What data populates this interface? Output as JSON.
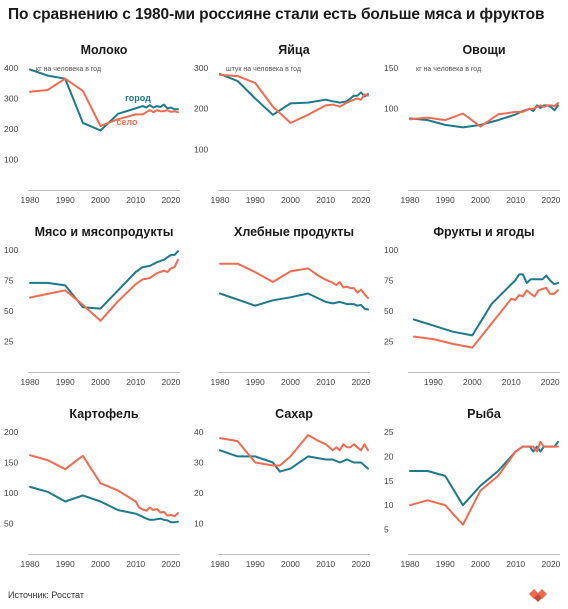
{
  "title": "По сравнению с 1980-ми россияне стали есть больше мяса и фруктов",
  "source": "Источник: Росстат",
  "colors": {
    "city": "#1c7a8c",
    "village": "#f26b50",
    "text": "#1a1a1a",
    "tick": "#444444"
  },
  "chart_data": [
    {
      "type": "line",
      "title": "Молоко",
      "ylim": [
        0,
        400
      ],
      "yticks": [
        0,
        100,
        200,
        300,
        400
      ],
      "ytick_labels": [
        "",
        "100",
        "200",
        "300",
        "400"
      ],
      "xlim": [
        1980,
        2022
      ],
      "xticks": [
        1980,
        1990,
        2000,
        2010,
        2020
      ],
      "unit_note": "кг на человека в год",
      "series": [
        {
          "name": "город",
          "color": "#1c7a8c",
          "x": [
            1980,
            1985,
            1990,
            1995,
            2000,
            2005,
            2010,
            2012,
            2013,
            2014,
            2015,
            2016,
            2017,
            2018,
            2019,
            2020,
            2021,
            2022
          ],
          "y": [
            395,
            375,
            365,
            220,
            195,
            250,
            268,
            275,
            270,
            278,
            270,
            275,
            272,
            280,
            268,
            270,
            265,
            265
          ]
        },
        {
          "name": "село",
          "color": "#f26b50",
          "x": [
            1980,
            1985,
            1990,
            1995,
            2000,
            2005,
            2010,
            2012,
            2013,
            2014,
            2015,
            2016,
            2017,
            2018,
            2019,
            2020,
            2021,
            2022
          ],
          "y": [
            322,
            328,
            365,
            325,
            210,
            232,
            248,
            248,
            255,
            262,
            255,
            262,
            258,
            258,
            262,
            256,
            258,
            255
          ]
        }
      ]
    },
    {
      "type": "line",
      "title": "Яйца",
      "ylim": [
        0,
        300
      ],
      "yticks": [
        0,
        100,
        200,
        300
      ],
      "ytick_labels": [
        "",
        "100",
        "200",
        "300"
      ],
      "xlim": [
        1980,
        2022
      ],
      "xticks": [
        1980,
        1990,
        2000,
        2010,
        2020
      ],
      "unit_note": "штук на человека в год",
      "series": [
        {
          "name": "",
          "color": "#1c7a8c",
          "x": [
            1980,
            1985,
            1990,
            1995,
            2000,
            2005,
            2010,
            2012,
            2014,
            2016,
            2018,
            2019,
            2020,
            2021,
            2022
          ],
          "y": [
            285,
            268,
            225,
            185,
            213,
            215,
            222,
            218,
            215,
            218,
            232,
            232,
            240,
            230,
            236
          ]
        },
        {
          "name": "",
          "color": "#f26b50",
          "x": [
            1980,
            1985,
            1990,
            1995,
            2000,
            2005,
            2010,
            2012,
            2014,
            2016,
            2018,
            2019,
            2020,
            2021,
            2022
          ],
          "y": [
            283,
            280,
            263,
            205,
            165,
            185,
            208,
            210,
            205,
            215,
            222,
            225,
            222,
            235,
            232
          ]
        }
      ]
    },
    {
      "type": "line",
      "title": "Овощи",
      "ylim": [
        0,
        150
      ],
      "yticks": [
        0,
        50,
        100,
        150
      ],
      "ytick_labels": [
        "",
        "",
        "100",
        "150"
      ],
      "xlim": [
        1980,
        2022
      ],
      "xticks": [
        1980,
        1990,
        2000,
        2010,
        2020
      ],
      "unit_note": "кг на человека в год",
      "series": [
        {
          "name": "",
          "color": "#1c7a8c",
          "x": [
            1980,
            1985,
            1990,
            1995,
            2000,
            2005,
            2010,
            2012,
            2014,
            2015,
            2016,
            2017,
            2018,
            2019,
            2020,
            2021,
            2022
          ],
          "y": [
            88,
            86,
            80,
            77,
            80,
            86,
            93,
            97,
            100,
            97,
            104,
            101,
            104,
            104,
            102,
            98,
            104
          ]
        },
        {
          "name": "",
          "color": "#f26b50",
          "x": [
            1980,
            1985,
            1990,
            1995,
            2000,
            2005,
            2010,
            2012,
            2014,
            2015,
            2016,
            2017,
            2018,
            2019,
            2020,
            2021,
            2022
          ],
          "y": [
            87,
            89,
            86,
            94,
            78,
            93,
            96,
            96,
            100,
            100,
            102,
            104,
            102,
            104,
            104,
            103,
            107
          ]
        }
      ]
    },
    {
      "type": "line",
      "title": "Мясо и мясопродукты",
      "ylim": [
        0,
        100
      ],
      "yticks": [
        0,
        25,
        50,
        75,
        100
      ],
      "ytick_labels": [
        "",
        "25",
        "50",
        "75",
        "100"
      ],
      "xlim": [
        1980,
        2022
      ],
      "xticks": [
        1980,
        1990,
        2000,
        2010,
        2020
      ],
      "unit_note": "",
      "series": [
        {
          "name": "",
          "color": "#1c7a8c",
          "x": [
            1980,
            1985,
            1990,
            1995,
            2000,
            2005,
            2010,
            2012,
            2014,
            2016,
            2018,
            2019,
            2020,
            2021,
            2022
          ],
          "y": [
            73,
            73,
            71,
            53,
            52,
            67,
            82,
            86,
            87,
            90,
            92,
            94,
            96,
            96,
            99
          ]
        },
        {
          "name": "",
          "color": "#f26b50",
          "x": [
            1980,
            1985,
            1990,
            1995,
            2000,
            2005,
            2010,
            2012,
            2014,
            2016,
            2018,
            2019,
            2020,
            2021,
            2022
          ],
          "y": [
            61,
            64,
            67,
            55,
            42,
            58,
            72,
            76,
            77,
            81,
            83,
            82,
            85,
            86,
            92
          ]
        }
      ]
    },
    {
      "type": "line",
      "title": "Хлебные продукты",
      "ylim": [
        0,
        160
      ],
      "yticks": [
        0,
        40,
        80,
        120,
        160
      ],
      "ytick_labels": [
        "",
        "",
        "",
        "",
        ""
      ],
      "xlim": [
        1980,
        2022
      ],
      "xticks": [
        1980,
        1990,
        2000,
        2010,
        2020
      ],
      "unit_note": "",
      "series": [
        {
          "name": "",
          "color": "#1c7a8c",
          "x": [
            1980,
            1985,
            1990,
            1995,
            2000,
            2005,
            2010,
            2012,
            2014,
            2016,
            2018,
            2019,
            2020,
            2021,
            2022
          ],
          "y": [
            103,
            95,
            87,
            94,
            98,
            103,
            92,
            90,
            92,
            89,
            89,
            87,
            88,
            83,
            82
          ]
        },
        {
          "name": "",
          "color": "#f26b50",
          "x": [
            1980,
            1985,
            1990,
            1995,
            2000,
            2005,
            2008,
            2010,
            2012,
            2013,
            2014,
            2015,
            2016,
            2017,
            2018,
            2019,
            2020,
            2021,
            2022
          ],
          "y": [
            142,
            142,
            131,
            118,
            132,
            136,
            126,
            121,
            117,
            114,
            118,
            111,
            112,
            110,
            110,
            104,
            108,
            102,
            97
          ]
        }
      ]
    },
    {
      "type": "line",
      "title": "Фрукты и ягоды",
      "ylim": [
        0,
        100
      ],
      "yticks": [
        0,
        25,
        50,
        75,
        100
      ],
      "ytick_labels": [
        "",
        "25",
        "50",
        "75",
        "100"
      ],
      "xlim": [
        1984,
        2022
      ],
      "xticks": [
        1990,
        2000,
        2010,
        2020
      ],
      "unit_note": "",
      "series": [
        {
          "name": "",
          "color": "#1c7a8c",
          "x": [
            1985,
            1990,
            1995,
            2000,
            2005,
            2010,
            2011,
            2012,
            2013,
            2014,
            2015,
            2016,
            2017,
            2018,
            2019,
            2020,
            2021,
            2022
          ],
          "y": [
            43,
            38,
            33,
            30,
            56,
            72,
            75,
            80,
            80,
            73,
            76,
            76,
            76,
            76,
            79,
            75,
            72,
            73
          ]
        },
        {
          "name": "",
          "color": "#f26b50",
          "x": [
            1985,
            1990,
            1995,
            2000,
            2005,
            2010,
            2011,
            2012,
            2013,
            2014,
            2015,
            2016,
            2017,
            2018,
            2019,
            2020,
            2021,
            2022
          ],
          "y": [
            29,
            27,
            23,
            20,
            40,
            60,
            59,
            63,
            62,
            67,
            64,
            62,
            67,
            68,
            69,
            64,
            64,
            67
          ]
        }
      ]
    },
    {
      "type": "line",
      "title": "Картофель",
      "ylim": [
        0,
        200
      ],
      "yticks": [
        0,
        50,
        100,
        150,
        200
      ],
      "ytick_labels": [
        "",
        "50",
        "100",
        "150",
        "200"
      ],
      "xlim": [
        1980,
        2022
      ],
      "xticks": [
        1980,
        1990,
        2000,
        2010,
        2020
      ],
      "unit_note": "",
      "series": [
        {
          "name": "",
          "color": "#1c7a8c",
          "x": [
            1980,
            1985,
            1990,
            1995,
            2000,
            2005,
            2010,
            2012,
            2013,
            2014,
            2015,
            2016,
            2017,
            2018,
            2019,
            2020,
            2021,
            2022
          ],
          "y": [
            110,
            102,
            86,
            96,
            86,
            72,
            66,
            61,
            58,
            56,
            56,
            57,
            58,
            56,
            55,
            52,
            52,
            53
          ]
        },
        {
          "name": "",
          "color": "#f26b50",
          "x": [
            1980,
            1985,
            1990,
            1995,
            2000,
            2005,
            2010,
            2011,
            2012,
            2013,
            2014,
            2015,
            2016,
            2017,
            2018,
            2019,
            2020,
            2021,
            2022
          ],
          "y": [
            162,
            154,
            139,
            161,
            116,
            104,
            86,
            76,
            73,
            71,
            76,
            72,
            74,
            68,
            69,
            63,
            64,
            62,
            67
          ]
        }
      ]
    },
    {
      "type": "line",
      "title": "Сахар",
      "ylim": [
        0,
        40
      ],
      "yticks": [
        0,
        10,
        20,
        30,
        40
      ],
      "ytick_labels": [
        "",
        "10",
        "20",
        "30",
        "40"
      ],
      "xlim": [
        1980,
        2022
      ],
      "xticks": [
        1980,
        1990,
        2000,
        2010,
        2020
      ],
      "unit_note": "",
      "series": [
        {
          "name": "",
          "color": "#1c7a8c",
          "x": [
            1980,
            1985,
            1990,
            1995,
            1997,
            2000,
            2005,
            2010,
            2012,
            2014,
            2016,
            2018,
            2019,
            2020,
            2021,
            2022
          ],
          "y": [
            34,
            32,
            32,
            30,
            27,
            28,
            32,
            31,
            31,
            30,
            31,
            30,
            30,
            30,
            29,
            28
          ]
        },
        {
          "name": "",
          "color": "#f26b50",
          "x": [
            1980,
            1985,
            1990,
            1995,
            1997,
            2000,
            2005,
            2008,
            2010,
            2012,
            2013,
            2014,
            2015,
            2016,
            2017,
            2018,
            2019,
            2020,
            2021,
            2022
          ],
          "y": [
            38,
            37,
            30,
            29,
            29,
            32,
            39,
            37,
            36,
            34,
            35,
            34,
            36,
            35,
            35,
            36,
            35,
            34,
            36,
            34
          ]
        }
      ]
    },
    {
      "type": "line",
      "title": "Рыба",
      "ylim": [
        0,
        25
      ],
      "yticks": [
        0,
        5,
        10,
        15,
        20,
        25
      ],
      "ytick_labels": [
        "",
        "5",
        "10",
        "15",
        "20",
        "25"
      ],
      "xlim": [
        1980,
        2022
      ],
      "xticks": [
        1980,
        1990,
        2000,
        2010,
        2020
      ],
      "unit_note": "",
      "series": [
        {
          "name": "",
          "color": "#1c7a8c",
          "x": [
            1980,
            1985,
            1990,
            1995,
            2000,
            2005,
            2010,
            2012,
            2014,
            2015,
            2016,
            2017,
            2018,
            2019,
            2020,
            2021,
            2022
          ],
          "y": [
            17,
            17,
            16,
            10,
            14,
            17,
            21,
            22,
            22,
            21,
            22,
            21,
            22,
            22,
            22,
            22,
            23
          ]
        },
        {
          "name": "",
          "color": "#f26b50",
          "x": [
            1980,
            1985,
            1990,
            1995,
            2000,
            2005,
            2010,
            2012,
            2014,
            2015,
            2016,
            2017,
            2018,
            2019,
            2020,
            2021,
            2022
          ],
          "y": [
            10,
            11,
            10,
            6,
            13,
            16,
            21,
            22,
            22,
            22,
            21,
            23,
            22,
            22,
            22,
            22,
            22
          ]
        }
      ]
    }
  ]
}
